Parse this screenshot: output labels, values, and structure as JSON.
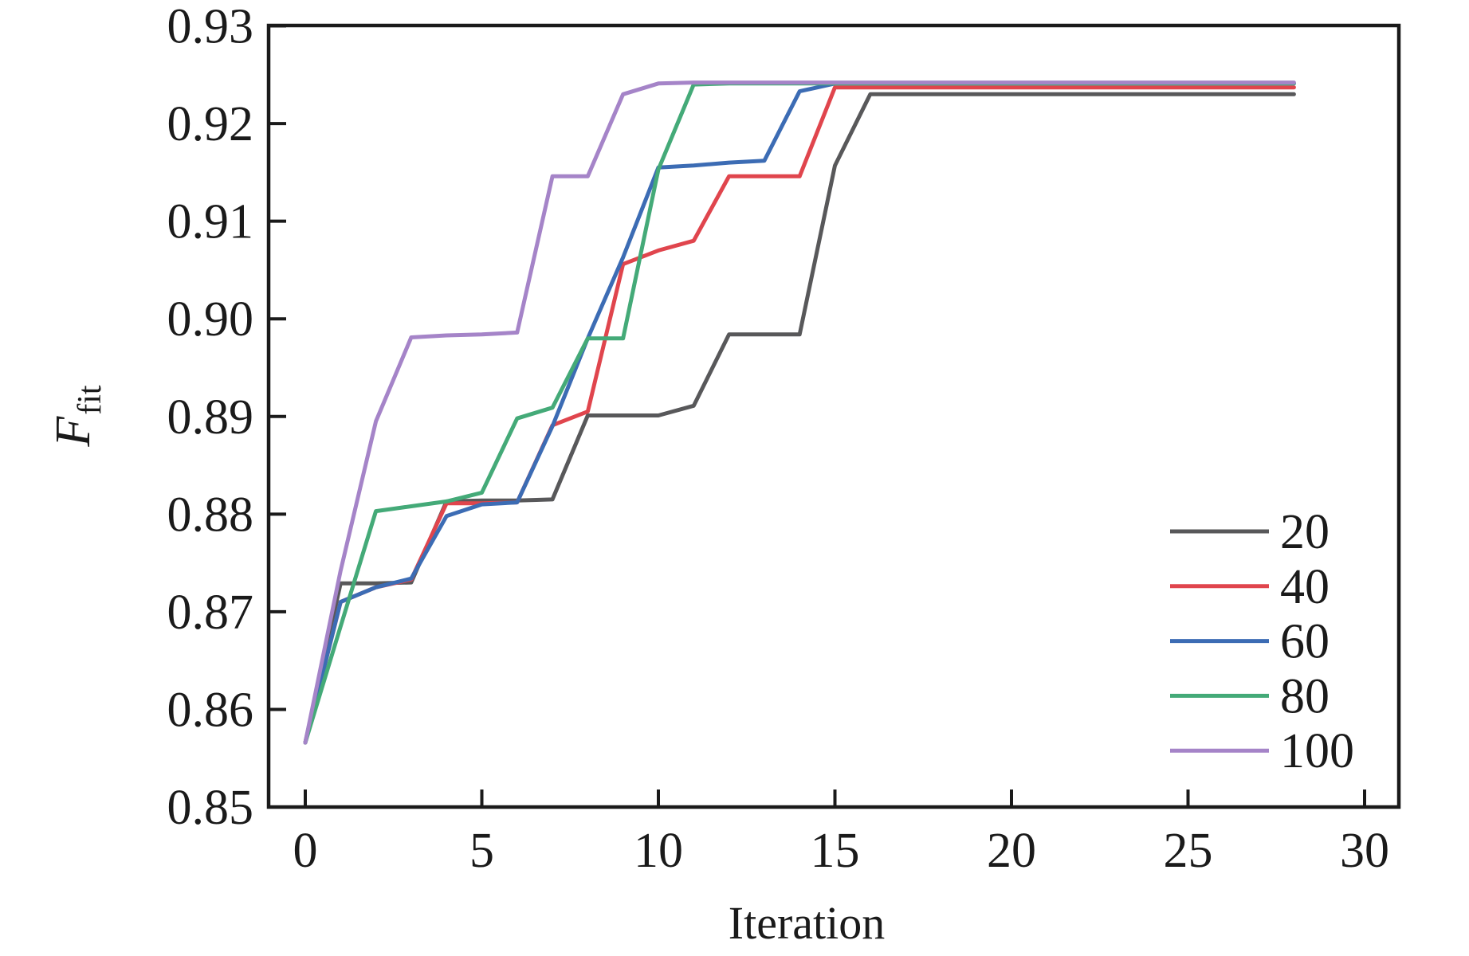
{
  "chart_data": {
    "type": "line",
    "title": "",
    "xlabel": "Iteration",
    "ylabel": "F_fit",
    "ylabel_main": "F",
    "ylabel_sub": "fit",
    "xlim": [
      -1,
      31
    ],
    "ylim": [
      0.85,
      0.93
    ],
    "grid": false,
    "legend_position": "lower right",
    "axis_color": "#1a1a1a",
    "xticks": [
      "0",
      "5",
      "10",
      "15",
      "20",
      "25",
      "30"
    ],
    "yticks": [
      "0.85",
      "0.86",
      "0.87",
      "0.88",
      "0.89",
      "0.90",
      "0.91",
      "0.92",
      "0.93"
    ],
    "x": [
      0,
      1,
      2,
      3,
      4,
      5,
      6,
      7,
      8,
      9,
      10,
      11,
      12,
      13,
      14,
      15,
      16,
      17,
      18,
      19,
      20,
      21,
      22,
      23,
      24,
      25,
      26,
      27,
      28
    ],
    "series": [
      {
        "name": "20",
        "color": "#58585a",
        "values": [
          0.8566,
          0.8729,
          0.8729,
          0.873,
          0.8813,
          0.8814,
          0.8814,
          0.8815,
          0.8901,
          0.8901,
          0.8901,
          0.8911,
          0.8984,
          0.8984,
          0.8984,
          0.9157,
          0.923,
          0.923,
          0.923,
          0.923,
          0.923,
          0.923,
          0.923,
          0.923,
          0.923,
          0.923,
          0.923,
          0.923,
          0.923
        ]
      },
      {
        "name": "40",
        "color": "#e0454d",
        "values": [
          0.8566,
          0.871,
          0.8725,
          0.8733,
          0.8811,
          0.8811,
          0.8812,
          0.8891,
          0.8905,
          0.9056,
          0.907,
          0.908,
          0.9146,
          0.9146,
          0.9146,
          0.9237,
          0.9237,
          0.9237,
          0.9237,
          0.9237,
          0.9237,
          0.9237,
          0.9237,
          0.9237,
          0.9237,
          0.9237,
          0.9237,
          0.9237,
          0.9237
        ]
      },
      {
        "name": "60",
        "color": "#3c6cb4",
        "values": [
          0.8566,
          0.871,
          0.8725,
          0.8734,
          0.8798,
          0.881,
          0.8812,
          0.889,
          0.898,
          0.9063,
          0.9155,
          0.9157,
          0.916,
          0.9162,
          0.9233,
          0.9241,
          0.9241,
          0.9241,
          0.9241,
          0.9241,
          0.9241,
          0.9241,
          0.9241,
          0.9241,
          0.9241,
          0.9241,
          0.9241,
          0.9241,
          0.9241
        ]
      },
      {
        "name": "80",
        "color": "#44aa78",
        "values": [
          0.8566,
          0.8685,
          0.8803,
          0.8808,
          0.8813,
          0.8822,
          0.8898,
          0.8909,
          0.898,
          0.898,
          0.9153,
          0.924,
          0.9241,
          0.9241,
          0.9241,
          0.9241,
          0.9241,
          0.9241,
          0.9241,
          0.9241,
          0.9241,
          0.9241,
          0.9241,
          0.9241,
          0.9241,
          0.9241,
          0.9241,
          0.9241,
          0.9241
        ]
      },
      {
        "name": "100",
        "color": "#a584c8",
        "values": [
          0.8566,
          0.8742,
          0.8895,
          0.8981,
          0.8983,
          0.8984,
          0.8986,
          0.9146,
          0.9146,
          0.923,
          0.9241,
          0.9242,
          0.9242,
          0.9242,
          0.9242,
          0.9242,
          0.9242,
          0.9242,
          0.9242,
          0.9242,
          0.9242,
          0.9242,
          0.9242,
          0.9242,
          0.9242,
          0.9242,
          0.9242,
          0.9242,
          0.9242
        ]
      }
    ]
  }
}
